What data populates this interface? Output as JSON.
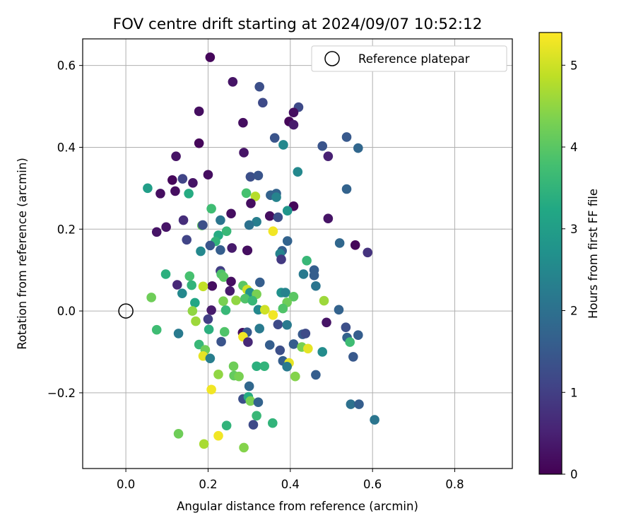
{
  "chart_data": {
    "type": "scatter",
    "title": "FOV centre drift starting at 2024/09/07 10:52:12",
    "xlabel": "Angular distance from reference (arcmin)",
    "ylabel": "Rotation from reference (arcmin)",
    "xlim": [
      -0.105,
      0.94
    ],
    "ylim": [
      -0.385,
      0.665
    ],
    "xticks": [
      0.0,
      0.2,
      0.4,
      0.6,
      0.8
    ],
    "xtick_labels": [
      "0.0",
      "0.2",
      "0.4",
      "0.6",
      "0.8"
    ],
    "yticks": [
      -0.2,
      0.0,
      0.2,
      0.4,
      0.6
    ],
    "ytick_labels": [
      "−0.2",
      "0.0",
      "0.2",
      "0.4",
      "0.6"
    ],
    "grid": true,
    "legend": {
      "placement": "top-right",
      "entries": [
        "Reference platepar"
      ]
    },
    "reference_point": {
      "x": 0.0,
      "y": 0.0,
      "marker": "open-circle",
      "label": "Reference platepar"
    },
    "colorbar": {
      "label": "Hours from first FF file",
      "colormap": "viridis",
      "range": [
        0,
        5.4
      ],
      "ticks": [
        0,
        1,
        2,
        3,
        4,
        5
      ],
      "tick_labels": [
        "0",
        "1",
        "2",
        "3",
        "4",
        "5"
      ]
    },
    "points": [
      {
        "x": 0.205,
        "y": 0.62,
        "c": 0.1
      },
      {
        "x": 0.26,
        "y": 0.56,
        "c": 0.3
      },
      {
        "x": 0.325,
        "y": 0.548,
        "c": 1.3
      },
      {
        "x": 0.333,
        "y": 0.509,
        "c": 1.2
      },
      {
        "x": 0.42,
        "y": 0.498,
        "c": 1.2
      },
      {
        "x": 0.408,
        "y": 0.485,
        "c": 0.2
      },
      {
        "x": 0.178,
        "y": 0.488,
        "c": 0.2
      },
      {
        "x": 0.285,
        "y": 0.46,
        "c": 0.2
      },
      {
        "x": 0.397,
        "y": 0.463,
        "c": 0.1
      },
      {
        "x": 0.408,
        "y": 0.455,
        "c": 0.4
      },
      {
        "x": 0.362,
        "y": 0.423,
        "c": 1.4
      },
      {
        "x": 0.537,
        "y": 0.425,
        "c": 1.5
      },
      {
        "x": 0.383,
        "y": 0.406,
        "c": 2.5
      },
      {
        "x": 0.478,
        "y": 0.403,
        "c": 1.4
      },
      {
        "x": 0.565,
        "y": 0.398,
        "c": 1.8
      },
      {
        "x": 0.178,
        "y": 0.41,
        "c": 0.1
      },
      {
        "x": 0.287,
        "y": 0.387,
        "c": 0.3
      },
      {
        "x": 0.492,
        "y": 0.378,
        "c": 0.5
      },
      {
        "x": 0.122,
        "y": 0.378,
        "c": 0.3
      },
      {
        "x": 0.2,
        "y": 0.333,
        "c": 0.2
      },
      {
        "x": 0.303,
        "y": 0.328,
        "c": 1.3
      },
      {
        "x": 0.322,
        "y": 0.331,
        "c": 1.4
      },
      {
        "x": 0.418,
        "y": 0.34,
        "c": 2.5
      },
      {
        "x": 0.113,
        "y": 0.32,
        "c": 0.1
      },
      {
        "x": 0.138,
        "y": 0.323,
        "c": 1.1
      },
      {
        "x": 0.163,
        "y": 0.313,
        "c": 0.3
      },
      {
        "x": 0.053,
        "y": 0.3,
        "c": 3.0
      },
      {
        "x": 0.537,
        "y": 0.298,
        "c": 1.7
      },
      {
        "x": 0.084,
        "y": 0.287,
        "c": 0.2
      },
      {
        "x": 0.12,
        "y": 0.293,
        "c": 0.2
      },
      {
        "x": 0.153,
        "y": 0.287,
        "c": 3.3
      },
      {
        "x": 0.293,
        "y": 0.288,
        "c": 3.8
      },
      {
        "x": 0.315,
        "y": 0.28,
        "c": 4.8
      },
      {
        "x": 0.352,
        "y": 0.283,
        "c": 1.7
      },
      {
        "x": 0.366,
        "y": 0.287,
        "c": 1.7
      },
      {
        "x": 0.366,
        "y": 0.278,
        "c": 2.4
      },
      {
        "x": 0.304,
        "y": 0.263,
        "c": 0.2
      },
      {
        "x": 0.408,
        "y": 0.256,
        "c": 0.1
      },
      {
        "x": 0.208,
        "y": 0.25,
        "c": 3.7
      },
      {
        "x": 0.256,
        "y": 0.238,
        "c": 0.2
      },
      {
        "x": 0.35,
        "y": 0.232,
        "c": 0.2
      },
      {
        "x": 0.37,
        "y": 0.229,
        "c": 1.3
      },
      {
        "x": 0.393,
        "y": 0.245,
        "c": 2.8
      },
      {
        "x": 0.492,
        "y": 0.226,
        "c": 0.3
      },
      {
        "x": 0.14,
        "y": 0.222,
        "c": 0.7
      },
      {
        "x": 0.23,
        "y": 0.222,
        "c": 2.1
      },
      {
        "x": 0.318,
        "y": 0.218,
        "c": 2.3
      },
      {
        "x": 0.098,
        "y": 0.205,
        "c": 0.3
      },
      {
        "x": 0.185,
        "y": 0.209,
        "c": 4.1
      },
      {
        "x": 0.187,
        "y": 0.21,
        "c": 1.3
      },
      {
        "x": 0.3,
        "y": 0.21,
        "c": 2.0
      },
      {
        "x": 0.075,
        "y": 0.193,
        "c": 0.3
      },
      {
        "x": 0.225,
        "y": 0.185,
        "c": 3.3
      },
      {
        "x": 0.245,
        "y": 0.195,
        "c": 3.6
      },
      {
        "x": 0.358,
        "y": 0.195,
        "c": 5.3
      },
      {
        "x": 0.148,
        "y": 0.174,
        "c": 1.1
      },
      {
        "x": 0.218,
        "y": 0.17,
        "c": 3.5
      },
      {
        "x": 0.393,
        "y": 0.171,
        "c": 1.7
      },
      {
        "x": 0.52,
        "y": 0.166,
        "c": 1.8
      },
      {
        "x": 0.558,
        "y": 0.161,
        "c": 0.1
      },
      {
        "x": 0.205,
        "y": 0.16,
        "c": 1.4
      },
      {
        "x": 0.258,
        "y": 0.154,
        "c": 0.4
      },
      {
        "x": 0.295,
        "y": 0.148,
        "c": 0.2
      },
      {
        "x": 0.296,
        "y": 0.148,
        "c": 0.2
      },
      {
        "x": 0.182,
        "y": 0.146,
        "c": 2.5
      },
      {
        "x": 0.23,
        "y": 0.149,
        "c": 1.6
      },
      {
        "x": 0.38,
        "y": 0.147,
        "c": 1.6
      },
      {
        "x": 0.375,
        "y": 0.14,
        "c": 2.4
      },
      {
        "x": 0.588,
        "y": 0.143,
        "c": 0.8
      },
      {
        "x": 0.378,
        "y": 0.126,
        "c": 0.9
      },
      {
        "x": 0.44,
        "y": 0.123,
        "c": 3.6
      },
      {
        "x": 0.097,
        "y": 0.09,
        "c": 3.4
      },
      {
        "x": 0.155,
        "y": 0.085,
        "c": 3.8
      },
      {
        "x": 0.23,
        "y": 0.098,
        "c": 1.0
      },
      {
        "x": 0.232,
        "y": 0.09,
        "c": 3.9
      },
      {
        "x": 0.238,
        "y": 0.083,
        "c": 4.0
      },
      {
        "x": 0.432,
        "y": 0.09,
        "c": 2.2
      },
      {
        "x": 0.458,
        "y": 0.1,
        "c": 1.6
      },
      {
        "x": 0.458,
        "y": 0.087,
        "c": 1.6
      },
      {
        "x": 0.256,
        "y": 0.072,
        "c": 0.2
      },
      {
        "x": 0.326,
        "y": 0.07,
        "c": 1.6
      },
      {
        "x": 0.125,
        "y": 0.064,
        "c": 0.6
      },
      {
        "x": 0.16,
        "y": 0.063,
        "c": 3.5
      },
      {
        "x": 0.21,
        "y": 0.061,
        "c": 0.2
      },
      {
        "x": 0.188,
        "y": 0.06,
        "c": 4.9
      },
      {
        "x": 0.285,
        "y": 0.062,
        "c": 4.0
      },
      {
        "x": 0.462,
        "y": 0.061,
        "c": 2.1
      },
      {
        "x": 0.137,
        "y": 0.043,
        "c": 2.5
      },
      {
        "x": 0.253,
        "y": 0.049,
        "c": 0.4
      },
      {
        "x": 0.295,
        "y": 0.052,
        "c": 5.0
      },
      {
        "x": 0.302,
        "y": 0.045,
        "c": 2.7
      },
      {
        "x": 0.318,
        "y": 0.041,
        "c": 4.3
      },
      {
        "x": 0.378,
        "y": 0.045,
        "c": 2.7
      },
      {
        "x": 0.388,
        "y": 0.045,
        "c": 2.4
      },
      {
        "x": 0.408,
        "y": 0.035,
        "c": 4.0
      },
      {
        "x": 0.062,
        "y": 0.033,
        "c": 4.2
      },
      {
        "x": 0.237,
        "y": 0.024,
        "c": 4.3
      },
      {
        "x": 0.268,
        "y": 0.026,
        "c": 4.5
      },
      {
        "x": 0.29,
        "y": 0.03,
        "c": 3.9
      },
      {
        "x": 0.308,
        "y": 0.025,
        "c": 3.6
      },
      {
        "x": 0.168,
        "y": 0.02,
        "c": 3.2
      },
      {
        "x": 0.392,
        "y": 0.021,
        "c": 4.2
      },
      {
        "x": 0.482,
        "y": 0.025,
        "c": 4.6
      },
      {
        "x": 0.208,
        "y": 0.002,
        "c": 0.4
      },
      {
        "x": 0.162,
        "y": 0.0,
        "c": 4.5
      },
      {
        "x": 0.243,
        "y": 0.002,
        "c": 3.6
      },
      {
        "x": 0.322,
        "y": 0.003,
        "c": 2.5
      },
      {
        "x": 0.338,
        "y": 0.003,
        "c": 5.0
      },
      {
        "x": 0.382,
        "y": 0.006,
        "c": 3.9
      },
      {
        "x": 0.518,
        "y": 0.003,
        "c": 1.7
      },
      {
        "x": 0.358,
        "y": -0.01,
        "c": 5.3
      },
      {
        "x": 0.2,
        "y": -0.02,
        "c": 1.0
      },
      {
        "x": 0.17,
        "y": -0.025,
        "c": 4.6
      },
      {
        "x": 0.37,
        "y": -0.033,
        "c": 1.2
      },
      {
        "x": 0.392,
        "y": -0.034,
        "c": 2.2
      },
      {
        "x": 0.488,
        "y": -0.028,
        "c": 0.3
      },
      {
        "x": 0.535,
        "y": -0.04,
        "c": 1.3
      },
      {
        "x": 0.075,
        "y": -0.046,
        "c": 3.7
      },
      {
        "x": 0.128,
        "y": -0.055,
        "c": 2.2
      },
      {
        "x": 0.202,
        "y": -0.045,
        "c": 3.4
      },
      {
        "x": 0.24,
        "y": -0.051,
        "c": 3.9
      },
      {
        "x": 0.284,
        "y": -0.053,
        "c": 0.2
      },
      {
        "x": 0.295,
        "y": -0.052,
        "c": 1.5
      },
      {
        "x": 0.325,
        "y": -0.043,
        "c": 2.2
      },
      {
        "x": 0.43,
        "y": -0.057,
        "c": 1.5
      },
      {
        "x": 0.437,
        "y": -0.055,
        "c": 1.2
      },
      {
        "x": 0.565,
        "y": -0.059,
        "c": 1.6
      },
      {
        "x": 0.538,
        "y": -0.065,
        "c": 1.7
      },
      {
        "x": 0.285,
        "y": -0.063,
        "c": 5.3
      },
      {
        "x": 0.232,
        "y": -0.075,
        "c": 1.4
      },
      {
        "x": 0.297,
        "y": -0.076,
        "c": 0.6
      },
      {
        "x": 0.545,
        "y": -0.076,
        "c": 3.7
      },
      {
        "x": 0.178,
        "y": -0.082,
        "c": 3.6
      },
      {
        "x": 0.35,
        "y": -0.083,
        "c": 1.6
      },
      {
        "x": 0.408,
        "y": -0.081,
        "c": 1.6
      },
      {
        "x": 0.375,
        "y": -0.096,
        "c": 1.3
      },
      {
        "x": 0.428,
        "y": -0.088,
        "c": 4.3
      },
      {
        "x": 0.443,
        "y": -0.092,
        "c": 5.2
      },
      {
        "x": 0.193,
        "y": -0.095,
        "c": 4.2
      },
      {
        "x": 0.478,
        "y": -0.1,
        "c": 2.6
      },
      {
        "x": 0.188,
        "y": -0.11,
        "c": 5.2
      },
      {
        "x": 0.205,
        "y": -0.116,
        "c": 2.3
      },
      {
        "x": 0.553,
        "y": -0.112,
        "c": 1.5
      },
      {
        "x": 0.382,
        "y": -0.122,
        "c": 1.6
      },
      {
        "x": 0.397,
        "y": -0.127,
        "c": 5.2
      },
      {
        "x": 0.392,
        "y": -0.136,
        "c": 2.2
      },
      {
        "x": 0.318,
        "y": -0.135,
        "c": 3.4
      },
      {
        "x": 0.337,
        "y": -0.135,
        "c": 3.5
      },
      {
        "x": 0.262,
        "y": -0.135,
        "c": 4.2
      },
      {
        "x": 0.263,
        "y": -0.158,
        "c": 4.1
      },
      {
        "x": 0.225,
        "y": -0.155,
        "c": 4.5
      },
      {
        "x": 0.275,
        "y": -0.16,
        "c": 4.3
      },
      {
        "x": 0.412,
        "y": -0.16,
        "c": 4.4
      },
      {
        "x": 0.462,
        "y": -0.156,
        "c": 1.6
      },
      {
        "x": 0.3,
        "y": -0.184,
        "c": 1.8
      },
      {
        "x": 0.208,
        "y": -0.192,
        "c": 5.3
      },
      {
        "x": 0.285,
        "y": -0.215,
        "c": 1.3
      },
      {
        "x": 0.298,
        "y": -0.21,
        "c": 3.3
      },
      {
        "x": 0.303,
        "y": -0.22,
        "c": 4.3
      },
      {
        "x": 0.322,
        "y": -0.223,
        "c": 1.7
      },
      {
        "x": 0.547,
        "y": -0.228,
        "c": 2.0
      },
      {
        "x": 0.567,
        "y": -0.228,
        "c": 1.6
      },
      {
        "x": 0.318,
        "y": -0.256,
        "c": 3.6
      },
      {
        "x": 0.605,
        "y": -0.266,
        "c": 2.1
      },
      {
        "x": 0.31,
        "y": -0.278,
        "c": 1.2
      },
      {
        "x": 0.357,
        "y": -0.274,
        "c": 3.5
      },
      {
        "x": 0.245,
        "y": -0.28,
        "c": 3.5
      },
      {
        "x": 0.128,
        "y": -0.3,
        "c": 4.2
      },
      {
        "x": 0.225,
        "y": -0.305,
        "c": 5.3
      },
      {
        "x": 0.19,
        "y": -0.325,
        "c": 4.7
      },
      {
        "x": 0.287,
        "y": -0.334,
        "c": 4.4
      }
    ]
  }
}
